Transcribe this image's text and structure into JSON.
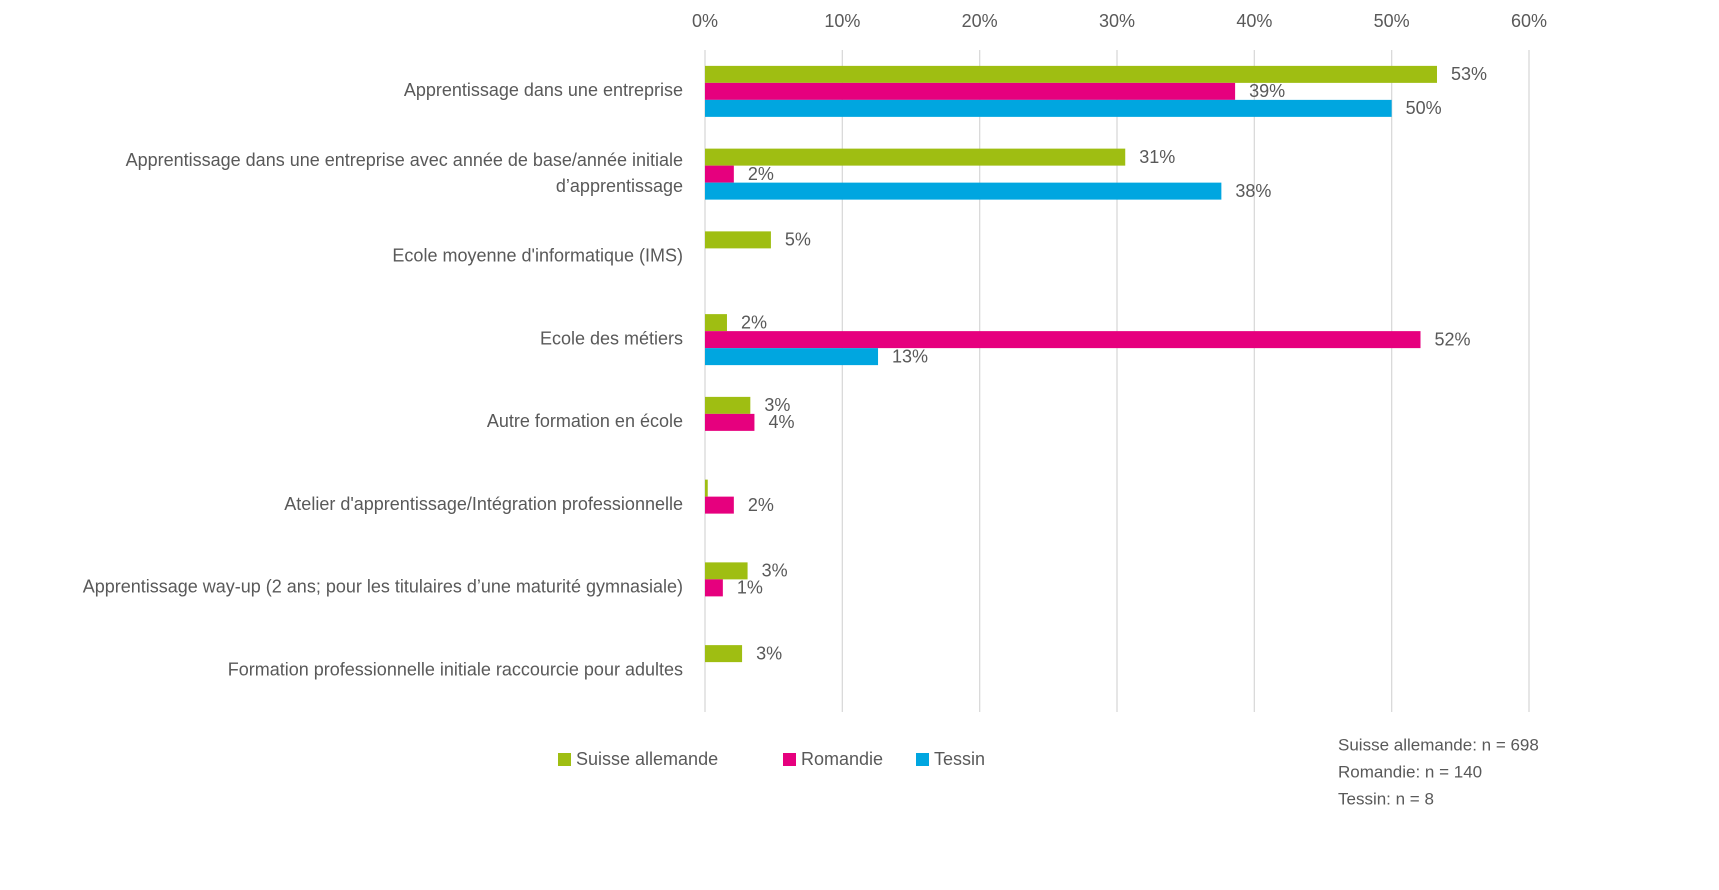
{
  "chart_data": {
    "type": "barh",
    "categories": [
      "Apprentissage dans une entreprise",
      "Apprentissage dans une entreprise avec année de base/année initiale\nd’apprentissage",
      "Ecole moyenne d'informatique (IMS)",
      "Ecole des métiers",
      "Autre formation en école",
      "Atelier d'apprentissage/Intégration professionnelle",
      "Apprentissage way-up (2 ans; pour les titulaires d’une maturité gymnasiale)",
      "Formation professionnelle initiale raccourcie pour adultes"
    ],
    "series": [
      {
        "name": "Suisse allemande",
        "color": "#9fbe12",
        "values": [
          53.3,
          30.6,
          4.8,
          1.6,
          3.3,
          0.2,
          3.1,
          2.7
        ],
        "value_labels": [
          "53%",
          "31%",
          "5%",
          "2%",
          "3%",
          null,
          "3%",
          "3%"
        ]
      },
      {
        "name": "Romandie",
        "color": "#e6007e",
        "values": [
          38.6,
          2.1,
          null,
          52.1,
          3.6,
          2.1,
          1.3,
          null
        ],
        "value_labels": [
          "39%",
          "2%",
          null,
          "52%",
          "4%",
          "2%",
          "1%",
          null
        ]
      },
      {
        "name": "Tessin",
        "color": "#00a6e0",
        "values": [
          50.0,
          37.6,
          null,
          12.6,
          null,
          null,
          null,
          null
        ],
        "value_labels": [
          "50%",
          "38%",
          null,
          "13%",
          null,
          null,
          null,
          null
        ]
      }
    ],
    "xlim": [
      0,
      60
    ],
    "xticks": [
      {
        "value": 0,
        "label": "0%"
      },
      {
        "value": 10,
        "label": "10%"
      },
      {
        "value": 20,
        "label": "20%"
      },
      {
        "value": 30,
        "label": "30%"
      },
      {
        "value": 40,
        "label": "40%"
      },
      {
        "value": 50,
        "label": "50%"
      },
      {
        "value": 60,
        "label": "60%"
      }
    ],
    "grid": true,
    "legend": "bottom",
    "notes": [
      "Suisse allemande: n = 698",
      "Romandie: n = 140",
      "Tessin: n = 8"
    ]
  }
}
